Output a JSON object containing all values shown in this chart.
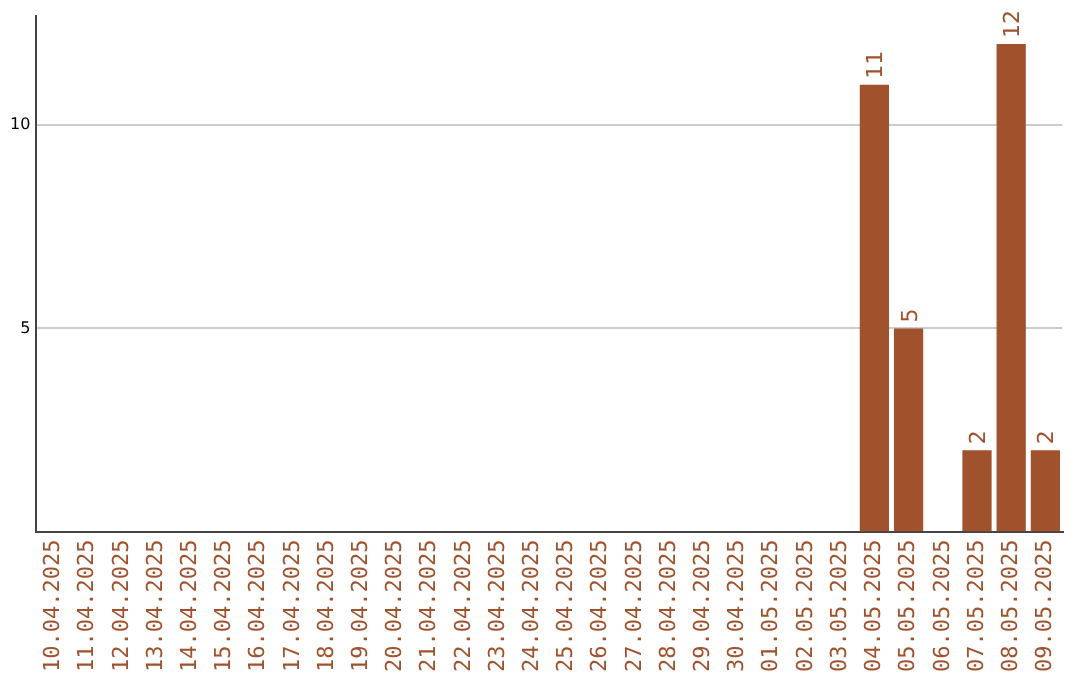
{
  "chart_data": {
    "type": "bar",
    "categories": [
      "10.04.2025",
      "11.04.2025",
      "12.04.2025",
      "13.04.2025",
      "14.04.2025",
      "15.04.2025",
      "16.04.2025",
      "17.04.2025",
      "18.04.2025",
      "19.04.2025",
      "20.04.2025",
      "21.04.2025",
      "22.04.2025",
      "23.04.2025",
      "24.04.2025",
      "25.04.2025",
      "26.04.2025",
      "27.04.2025",
      "28.04.2025",
      "29.04.2025",
      "30.04.2025",
      "01.05.2025",
      "02.05.2025",
      "03.05.2025",
      "04.05.2025",
      "05.05.2025",
      "06.05.2025",
      "07.05.2025",
      "08.05.2025",
      "09.05.2025"
    ],
    "values": [
      null,
      null,
      null,
      null,
      null,
      null,
      null,
      null,
      null,
      null,
      null,
      null,
      null,
      null,
      null,
      null,
      null,
      null,
      null,
      null,
      null,
      null,
      null,
      null,
      11,
      5,
      null,
      2,
      12,
      2
    ],
    "color": "#a0522d",
    "ylim": [
      0,
      12.7
    ],
    "yticks": [
      5,
      10
    ],
    "grid": "y",
    "data_labels": true,
    "legend": false
  }
}
